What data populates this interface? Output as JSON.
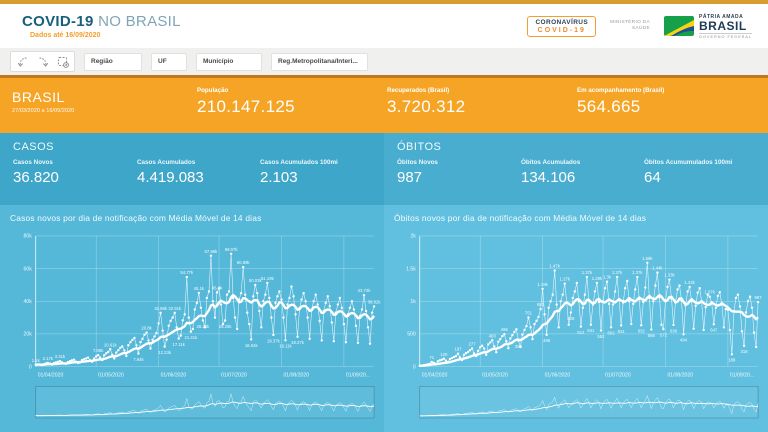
{
  "header": {
    "title_bold": "COVID-19",
    "title_light": "NO BRASIL",
    "subtitle": "Dados até 16/09/2020",
    "badge_line1": "CORONAVÍRUS",
    "badge_line2": "COVID-19",
    "ministry_line1": "MINISTÉRIO DA",
    "ministry_line2": "SAÚDE",
    "gov_line1": "PÁTRIA AMADA",
    "gov_line2": "BRASIL",
    "gov_line3": "GOVERNO FEDERAL"
  },
  "toolbar": {
    "filters": [
      {
        "label": "Região"
      },
      {
        "label": "UF"
      },
      {
        "label": "Município"
      },
      {
        "label": "Reg.Metropolitana/Interi..."
      }
    ]
  },
  "summary": {
    "region": "BRASIL",
    "period": "27/03/2020 a 16/09/2020",
    "stats": [
      {
        "label": "População",
        "value": "210.147.125"
      },
      {
        "label": "Recuperados (Brasil)",
        "value": "3.720.312"
      },
      {
        "label": "Em acompanhamento (Brasil)",
        "value": "564.665"
      }
    ]
  },
  "cases": {
    "title": "CASOS",
    "stats": [
      {
        "label": "Casos Novos",
        "value": "36.820"
      },
      {
        "label": "Casos Acumulados",
        "value": "4.419.083"
      },
      {
        "label": "Casos Acumulados 100mi",
        "value": "2.103"
      }
    ]
  },
  "deaths": {
    "title": "ÓBITOS",
    "stats": [
      {
        "label": "Óbitos Novos",
        "value": "987"
      },
      {
        "label": "Óbitos Acumulados",
        "value": "134.106"
      },
      {
        "label": "Óbitos Acumumulados 100mi",
        "value": "64"
      }
    ]
  },
  "colors": {
    "accent_orange": "#f5a426",
    "top_bar_gold": "#d99c30",
    "toolbar_border": "#c0781a",
    "stats_cases_bg": "#3ea6c8",
    "stats_deaths_bg": "#49add0",
    "chart_left_bg": "#55b8d9",
    "chart_right_bg": "#61c0df",
    "title_teal": "#17607c",
    "line_color": "#ffffff"
  },
  "chart_data": [
    {
      "type": "line",
      "title": "Casos novos por dia de notificação com Média Móvel de 14 dias",
      "series_name": "Casos novos",
      "ma_name": "Média Móvel de 14 dias",
      "ylim": [
        0,
        80000
      ],
      "y_ticks": [
        {
          "v": 0,
          "label": "0"
        },
        {
          "v": 20000,
          "label": "20k"
        },
        {
          "v": 40000,
          "label": "40k"
        },
        {
          "v": 60000,
          "label": "60k"
        },
        {
          "v": 80000,
          "label": "80k"
        }
      ],
      "x_ticks": [
        {
          "i": 0,
          "label": "01/04/2020"
        },
        {
          "i": 30,
          "label": "01/05/2020"
        },
        {
          "i": 61,
          "label": "01/06/2020"
        },
        {
          "i": 91,
          "label": "01/07/2020"
        },
        {
          "i": 122,
          "label": "01/08/2020"
        },
        {
          "i": 153,
          "label": "01/09/20..."
        }
      ],
      "values": [
        1100,
        1300,
        1200,
        900,
        1400,
        1900,
        2170,
        1800,
        1200,
        2100,
        2500,
        2900,
        3310,
        2600,
        1900,
        1600,
        2800,
        3300,
        3800,
        4200,
        3000,
        2200,
        2500,
        4000,
        4500,
        5000,
        5500,
        3800,
        3000,
        4900,
        6200,
        7060,
        5500,
        4000,
        6900,
        8100,
        9000,
        10610,
        7200,
        5000,
        8600,
        10000,
        11500,
        12300,
        9900,
        6500,
        13100,
        14900,
        16300,
        17500,
        13000,
        7940,
        15000,
        17000,
        19500,
        20800,
        16000,
        11000,
        16500,
        18500,
        20500,
        26400,
        32880,
        22000,
        12230,
        16500,
        25000,
        28000,
        30000,
        32910,
        24000,
        17110,
        19000,
        28300,
        32000,
        54770,
        30000,
        21410,
        23000,
        35000,
        39000,
        45100,
        36000,
        28230,
        24000,
        42000,
        46000,
        67860,
        40000,
        30000,
        45400,
        48000,
        38000,
        26000,
        28250,
        44000,
        46000,
        69070,
        42000,
        30000,
        23000,
        41000,
        45000,
        60890,
        44000,
        33000,
        26000,
        16640,
        43000,
        50030,
        45000,
        34000,
        24000,
        40000,
        44000,
        51190,
        42000,
        30000,
        19370,
        39000,
        43000,
        46000,
        41000,
        30000,
        16110,
        38000,
        42000,
        49000,
        43000,
        32000,
        18270,
        36000,
        41000,
        45000,
        40000,
        30000,
        17000,
        35000,
        40000,
        44000,
        38000,
        28000,
        16000,
        34000,
        39000,
        43000,
        37000,
        27000,
        15500,
        33000,
        38000,
        42000,
        36000,
        26000,
        14900,
        32000,
        36000,
        40000,
        35000,
        25000,
        14500,
        31000,
        35000,
        43720,
        34000,
        24000,
        14000,
        33000,
        36820
      ],
      "point_labels": {
        "0": "1.1k",
        "6": "2.17k",
        "12": "3.31k",
        "31": "7.06k",
        "37": "10.61k",
        "51": "7.94k",
        "55": "20.8k",
        "62": "32.88k",
        "64": "12.23k",
        "69": "32.91k",
        "71": "17.11k",
        "75": "54.77k",
        "77": "21.41k",
        "81": "45.1k",
        "83": "28.23k",
        "87": "67.86k",
        "90": "45.4k",
        "94": "28.25k",
        "97": "69.07k",
        "103": "60.89k",
        "107": "16.64k",
        "109": "50.03k",
        "115": "51.19k",
        "118": "19.37k",
        "124": "16.11k",
        "130": "18.27k",
        "163": "43.72k",
        "168": "36.82k"
      }
    },
    {
      "type": "line",
      "title": "Óbitos novos por dia de notificação com Média Móvel de 14 dias",
      "series_name": "Óbitos novos",
      "ma_name": "Média Móvel de 14 dias",
      "ylim": [
        0,
        2000
      ],
      "y_ticks": [
        {
          "v": 0,
          "label": "0"
        },
        {
          "v": 500,
          "label": "500"
        },
        {
          "v": 1000,
          "label": "1k"
        },
        {
          "v": 1500,
          "label": "1.5k"
        },
        {
          "v": 2000,
          "label": "2k"
        }
      ],
      "x_ticks": [
        {
          "i": 0,
          "label": "01/04/2020"
        },
        {
          "i": 30,
          "label": "01/05/2020"
        },
        {
          "i": 61,
          "label": "01/06/2020"
        },
        {
          "i": 91,
          "label": "01/07/2020"
        },
        {
          "i": 122,
          "label": "01/08/2020"
        },
        {
          "i": 153,
          "label": "01/09/20..."
        }
      ],
      "values": [
        10,
        15,
        20,
        25,
        35,
        42,
        71,
        55,
        40,
        80,
        95,
        105,
        120,
        90,
        70,
        115,
        130,
        145,
        160,
        197,
        140,
        100,
        180,
        204,
        225,
        250,
        277,
        200,
        160,
        240,
        296,
        320,
        275,
        180,
        340,
        370,
        403,
        310,
        220,
        380,
        420,
        465,
        496,
        390,
        280,
        430,
        480,
        530,
        570,
        398,
        300,
        490,
        560,
        620,
        751,
        600,
        420,
        650,
        700,
        760,
        881,
        1190,
        800,
        486,
        900,
        1000,
        1100,
        1470,
        950,
        600,
        1000,
        1100,
        1270,
        980,
        640,
        828,
        1050,
        1150,
        1280,
        1000,
        612,
        900,
        1100,
        1370,
        1010,
        641,
        950,
        1150,
        1280,
        990,
        552,
        1000,
        1200,
        1300,
        960,
        602,
        950,
        1150,
        1370,
        1020,
        631,
        980,
        1200,
        1310,
        1000,
        652,
        960,
        1180,
        1370,
        1030,
        632,
        990,
        1210,
        1590,
        1050,
        566,
        1000,
        1240,
        1440,
        1060,
        641,
        572,
        1000,
        1220,
        1330,
        1040,
        638,
        980,
        1180,
        1240,
        1010,
        494,
        940,
        1150,
        1220,
        1000,
        580,
        930,
        1130,
        1200,
        990,
        560,
        910,
        1100,
        1070,
        970,
        647,
        900,
        1080,
        1140,
        950,
        600,
        880,
        870,
        560,
        188,
        850,
        1050,
        1100,
        920,
        540,
        318,
        830,
        1000,
        1070,
        900,
        520,
        300,
        987
      ],
      "point_labels": {
        "6": "71",
        "12": "120",
        "19": "197",
        "26": "277",
        "36": "403",
        "42": "496",
        "49": "398",
        "54": "751",
        "60": "881",
        "61": "1.19k",
        "63": "486",
        "67": "1.47k",
        "72": "1.27k",
        "75": "828",
        "80": "612",
        "83": "1.37k",
        "85": "641",
        "88": "1.28k",
        "90": "552",
        "93": "1.3k",
        "95": "602",
        "98": "1.37k",
        "100": "631",
        "108": "1.37k",
        "110": "632",
        "113": "1.59k",
        "115": "566",
        "118": "1.44k",
        "121": "572",
        "124": "1.33k",
        "126": "638",
        "131": "494",
        "134": "1.22k",
        "144": "1.07k",
        "146": "647",
        "155": "188",
        "161": "318",
        "168": "987"
      }
    }
  ]
}
